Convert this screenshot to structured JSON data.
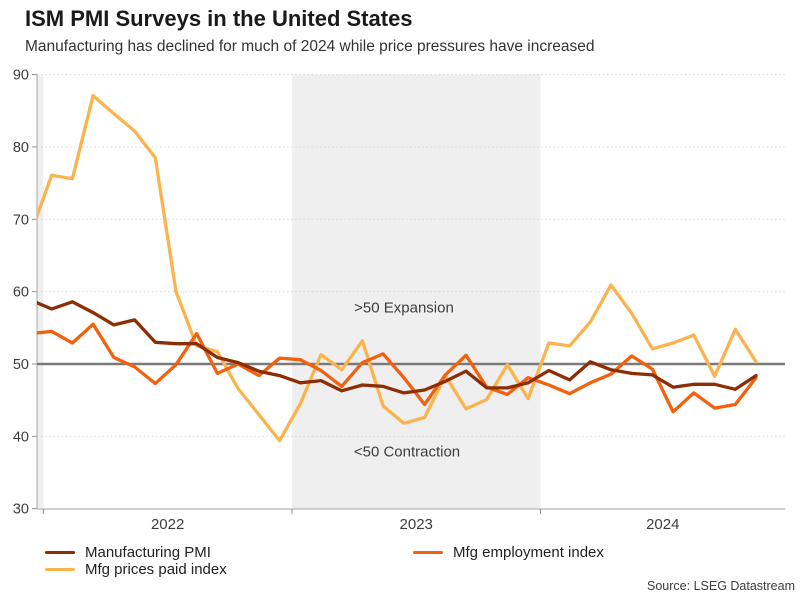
{
  "header": {
    "title": "ISM PMI Surveys in the United States",
    "subtitle": "Manufacturing has declined for much of 2024 while price pressures have increased"
  },
  "source": "Source: LSEG Datastream",
  "chart_data": {
    "type": "line",
    "x_unit": "month",
    "months": [
      "Dec 2021",
      "Jan 2022",
      "Feb 2022",
      "Mar 2022",
      "Apr 2022",
      "May 2022",
      "Jun 2022",
      "Jul 2022",
      "Aug 2022",
      "Sep 2022",
      "Oct 2022",
      "Nov 2022",
      "Dec 2022",
      "Jan 2023",
      "Feb 2023",
      "Mar 2023",
      "Apr 2023",
      "May 2023",
      "Jun 2023",
      "Jul 2023",
      "Aug 2023",
      "Sep 2023",
      "Oct 2023",
      "Nov 2023",
      "Dec 2023",
      "Jan 2024",
      "Feb 2024",
      "Mar 2024",
      "Apr 2024",
      "May 2024",
      "Jun 2024",
      "Jul 2024",
      "Aug 2024",
      "Sep 2024",
      "Oct 2024",
      "Nov 2024"
    ],
    "series": [
      {
        "name": "Manufacturing PMI",
        "color": "#8C2D04",
        "values": [
          58.8,
          57.6,
          58.6,
          57.1,
          55.4,
          56.1,
          53.0,
          52.8,
          52.8,
          50.9,
          50.2,
          49.0,
          48.4,
          47.4,
          47.7,
          46.3,
          47.1,
          46.9,
          46.0,
          46.4,
          47.6,
          49.0,
          46.7,
          46.7,
          47.4,
          49.1,
          47.8,
          50.3,
          49.2,
          48.7,
          48.5,
          46.8,
          47.2,
          47.2,
          46.5,
          48.4
        ]
      },
      {
        "name": "Mfg employment index",
        "color": "#F1610E",
        "values": [
          54.2,
          54.5,
          52.9,
          55.5,
          50.9,
          49.6,
          47.3,
          49.9,
          54.2,
          48.7,
          50.0,
          48.4,
          50.8,
          50.6,
          49.1,
          46.9,
          50.2,
          51.4,
          48.1,
          44.4,
          48.5,
          51.2,
          46.8,
          45.8,
          48.1,
          47.1,
          45.9,
          47.4,
          48.6,
          51.1,
          49.3,
          43.4,
          46.0,
          43.9,
          44.4,
          48.1
        ]
      },
      {
        "name": "Mfg prices paid index",
        "color": "#FBB44D",
        "values": [
          68.2,
          76.1,
          75.6,
          87.1,
          84.6,
          82.2,
          78.5,
          60.0,
          52.5,
          51.7,
          46.6,
          43.0,
          39.4,
          44.5,
          51.3,
          49.2,
          53.2,
          44.2,
          41.8,
          42.6,
          48.4,
          43.8,
          45.1,
          49.9,
          45.2,
          52.9,
          52.5,
          55.8,
          60.9,
          57.0,
          52.1,
          52.9,
          54.0,
          48.3,
          54.8,
          50.3
        ]
      }
    ],
    "ylim": [
      30,
      90
    ],
    "y_ticks": [
      30,
      40,
      50,
      60,
      70,
      80,
      90
    ],
    "x_year_labels": [
      "2022",
      "2023",
      "2024"
    ],
    "reference_line": {
      "value": 50,
      "color": "#7A7A7A"
    },
    "shaded_years": [
      "2021",
      "2023"
    ],
    "shaded_color": "#EFEFEF",
    "grid": "horizontal-dotted",
    "grid_color": "#D8D8D8",
    "axis_color": "#B3B3B3",
    "tick_text_color": "#3D3D3D",
    "legend_position": "bottom",
    "annotations": [
      {
        "text": ">50 Expansion"
      },
      {
        "text": "<50 Contraction"
      }
    ]
  }
}
